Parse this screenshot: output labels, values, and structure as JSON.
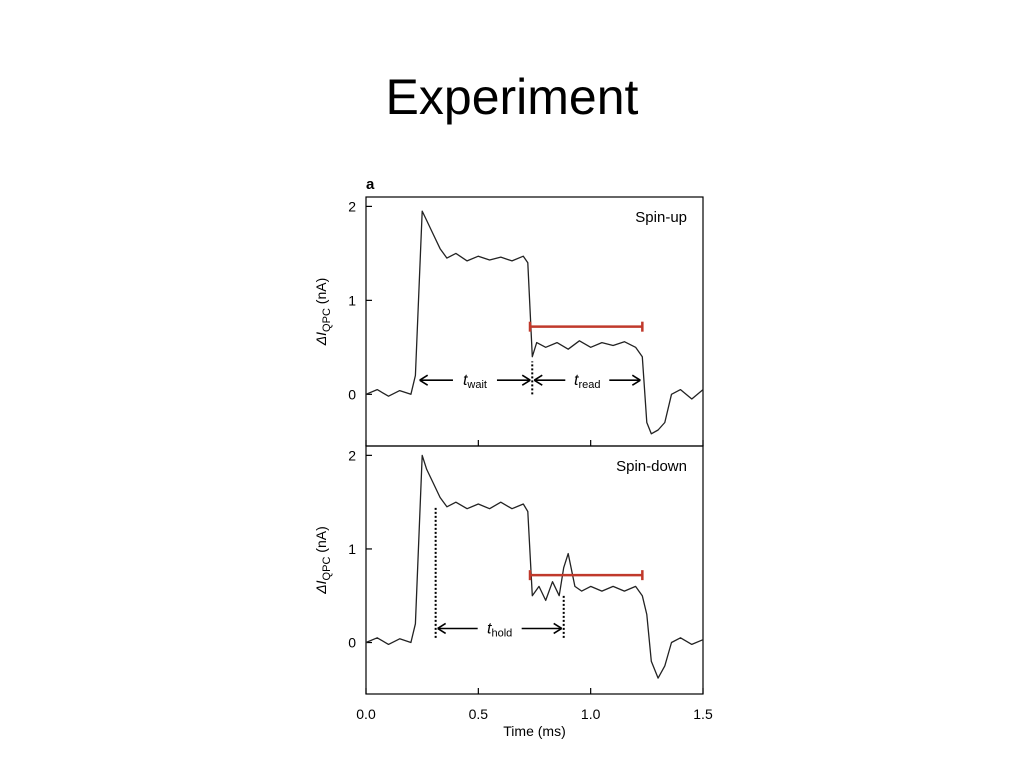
{
  "slide": {
    "title": "Experiment"
  },
  "chart_data": {
    "figure_label": "a",
    "type": "line",
    "xlabel": "Time (ms)",
    "xlim": [
      0.0,
      1.5
    ],
    "x_ticks": [
      "0.0",
      "0.5",
      "1.0",
      "1.5"
    ],
    "x_tick_values": [
      0.0,
      0.5,
      1.0,
      1.5
    ],
    "panels": [
      {
        "name": "Spin-up",
        "ylabel_prefix": "ΔI",
        "ylabel_sub": "QPC",
        "ylabel_suffix": " (nA)",
        "ylim": [
          -0.55,
          2.1
        ],
        "y_ticks": [
          "0",
          "1",
          "2"
        ],
        "y_tick_values": [
          0,
          1,
          2
        ],
        "series": [
          {
            "x": [
              0.0,
              0.05,
              0.1,
              0.15,
              0.2,
              0.22,
              0.25,
              0.27,
              0.3,
              0.33,
              0.36,
              0.4,
              0.45,
              0.5,
              0.55,
              0.6,
              0.65,
              0.7,
              0.72,
              0.74,
              0.76,
              0.8,
              0.85,
              0.9,
              0.95,
              1.0,
              1.05,
              1.1,
              1.15,
              1.2,
              1.23,
              1.25,
              1.27,
              1.3,
              1.33,
              1.36,
              1.4,
              1.45,
              1.5
            ],
            "y": [
              0.0,
              0.05,
              -0.02,
              0.04,
              0.0,
              0.2,
              1.95,
              1.85,
              1.7,
              1.55,
              1.45,
              1.5,
              1.42,
              1.47,
              1.43,
              1.46,
              1.42,
              1.47,
              1.4,
              0.4,
              0.55,
              0.5,
              0.55,
              0.48,
              0.57,
              0.5,
              0.55,
              0.52,
              0.56,
              0.5,
              0.4,
              -0.3,
              -0.42,
              -0.38,
              -0.3,
              0.0,
              0.05,
              -0.05,
              0.05
            ]
          }
        ],
        "read_bar": {
          "x": [
            0.73,
            1.23
          ],
          "y": 0.72
        },
        "annotations": [
          {
            "var": "t",
            "sub": "wait",
            "x_from": 0.23,
            "x_to": 0.74,
            "y": 0.15
          },
          {
            "var": "t",
            "sub": "read",
            "x_from": 0.74,
            "x_to": 1.23,
            "y": 0.15
          }
        ],
        "markers": [
          {
            "x": 0.74,
            "y_from": 0.0,
            "y_to": 0.35
          }
        ]
      },
      {
        "name": "Spin-down",
        "ylabel_prefix": "ΔI",
        "ylabel_sub": "QPC",
        "ylabel_suffix": " (nA)",
        "ylim": [
          -0.55,
          2.1
        ],
        "y_ticks": [
          "0",
          "1",
          "2"
        ],
        "y_tick_values": [
          0,
          1,
          2
        ],
        "series": [
          {
            "x": [
              0.0,
              0.05,
              0.1,
              0.15,
              0.2,
              0.22,
              0.25,
              0.27,
              0.3,
              0.33,
              0.36,
              0.4,
              0.45,
              0.5,
              0.55,
              0.6,
              0.65,
              0.7,
              0.72,
              0.74,
              0.77,
              0.8,
              0.83,
              0.86,
              0.88,
              0.9,
              0.93,
              0.96,
              1.0,
              1.05,
              1.1,
              1.15,
              1.2,
              1.23,
              1.25,
              1.27,
              1.3,
              1.33,
              1.36,
              1.4,
              1.45,
              1.5
            ],
            "y": [
              0.0,
              0.05,
              -0.02,
              0.04,
              0.0,
              0.2,
              2.0,
              1.85,
              1.7,
              1.55,
              1.45,
              1.5,
              1.43,
              1.48,
              1.43,
              1.5,
              1.43,
              1.48,
              1.4,
              0.5,
              0.6,
              0.45,
              0.65,
              0.5,
              0.8,
              0.95,
              0.6,
              0.55,
              0.6,
              0.55,
              0.6,
              0.55,
              0.6,
              0.5,
              0.3,
              -0.2,
              -0.38,
              -0.25,
              0.0,
              0.05,
              -0.02,
              0.03
            ]
          }
        ],
        "read_bar": {
          "x": [
            0.73,
            1.23
          ],
          "y": 0.72
        },
        "annotations": [
          {
            "var": "t",
            "sub": "hold",
            "x_from": 0.31,
            "x_to": 0.88,
            "y": 0.15
          }
        ],
        "markers": [
          {
            "x": 0.31,
            "y_from": 0.05,
            "y_to": 1.45
          },
          {
            "x": 0.88,
            "y_from": 0.05,
            "y_to": 0.5
          }
        ]
      }
    ],
    "colors": {
      "trace": "#222222",
      "read_bar": "#c0392b",
      "axis": "#000000"
    }
  }
}
